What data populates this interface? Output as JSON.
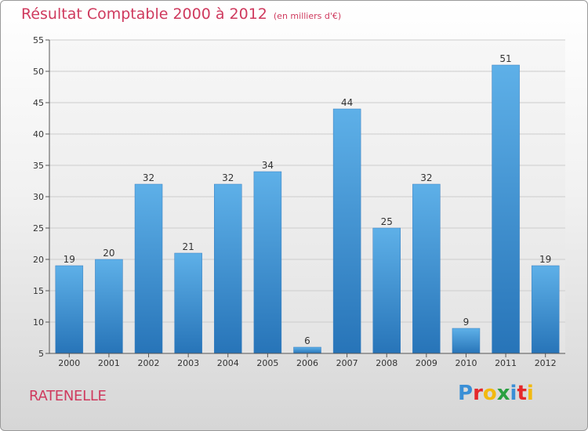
{
  "title": "Résultat Comptable 2000 à 2012",
  "subtitle": "(en milliers d'€)",
  "commune": "RATENELLE",
  "logo": {
    "text": "Proxiti",
    "letters": [
      {
        "ch": "P",
        "color": "#3a8fd6"
      },
      {
        "ch": "r",
        "color": "#e5282b"
      },
      {
        "ch": "o",
        "color": "#f2b90f"
      },
      {
        "ch": "x",
        "color": "#2aa040"
      },
      {
        "ch": "i",
        "color": "#3a8fd6"
      },
      {
        "ch": "t",
        "color": "#e5282b"
      },
      {
        "ch": "i",
        "color": "#f2b90f"
      }
    ]
  },
  "colors": {
    "title": "#cf3a5e",
    "bar_top": "#5eb0e8",
    "bar_bottom": "#2774b8",
    "axis": "#555555",
    "grid": "#cccccc"
  },
  "chart_data": {
    "type": "bar",
    "title": "Résultat Comptable 2000 à 2012",
    "subtitle": "(en milliers d'€)",
    "xlabel": "",
    "ylabel": "",
    "categories": [
      "2000",
      "2001",
      "2002",
      "2003",
      "2004",
      "2005",
      "2006",
      "2007",
      "2008",
      "2009",
      "2010",
      "2011",
      "2012"
    ],
    "values": [
      19,
      20,
      32,
      21,
      32,
      34,
      6,
      44,
      25,
      32,
      9,
      51,
      19
    ],
    "ylim": [
      5,
      55
    ],
    "yticks": [
      5,
      10,
      15,
      20,
      25,
      30,
      35,
      40,
      45,
      50,
      55
    ],
    "grid": true
  }
}
